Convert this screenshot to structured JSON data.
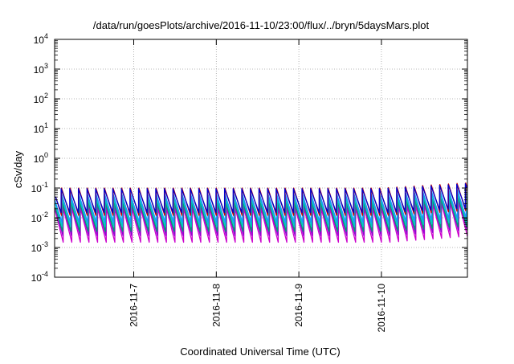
{
  "chart_data": {
    "type": "line",
    "title": "/data/run/goesPlots/archive/2016-11-10/23:00/flux/../bryn/5daysMars.plot",
    "xlabel": "Coordinated Universal Time (UTC)",
    "ylabel": "cSv/day",
    "y_scale": "log",
    "ylim": [
      0.0001,
      10000
    ],
    "y_ticks": [
      {
        "base": "10",
        "exp": "4",
        "value": 10000
      },
      {
        "base": "10",
        "exp": "3",
        "value": 1000
      },
      {
        "base": "10",
        "exp": "2",
        "value": 100
      },
      {
        "base": "10",
        "exp": "1",
        "value": 10
      },
      {
        "base": "10",
        "exp": "0",
        "value": 1
      },
      {
        "base": "10",
        "exp": "-1",
        "value": 0.1
      },
      {
        "base": "10",
        "exp": "-2",
        "value": 0.01
      },
      {
        "base": "10",
        "exp": "-3",
        "value": 0.001
      },
      {
        "base": "10",
        "exp": "-4",
        "value": 0.0001
      }
    ],
    "xlim": [
      "2016-11-06T01:00",
      "2016-11-11T01:00"
    ],
    "x_ticks": [
      {
        "label": "2016-11-7",
        "date": "2016-11-07T00:00"
      },
      {
        "label": "2016-11-8",
        "date": "2016-11-08T00:00"
      },
      {
        "label": "2016-11-9",
        "date": "2016-11-09T00:00"
      },
      {
        "label": "2016-11-10",
        "date": "2016-11-10T00:00"
      }
    ],
    "grid": "dotted, at major ticks",
    "legend": "none",
    "sawtooth_period_hours": 2.5,
    "series": [
      {
        "color": "#cc00cc",
        "peak": 0.021,
        "trough": 0.0015,
        "late_peak": 0.035
      },
      {
        "color": "#9400d3",
        "peak": 0.028,
        "trough": 0.0025,
        "late_peak": 0.045
      },
      {
        "color": "#009e73",
        "peak": 0.032,
        "trough": 0.0035,
        "late_peak": 0.05
      },
      {
        "color": "#00c8c8",
        "peak": 0.045,
        "trough": 0.005,
        "late_peak": 0.07
      },
      {
        "color": "#1e90ff",
        "peak": 0.06,
        "trough": 0.007,
        "late_peak": 0.09
      },
      {
        "color": "#c00000",
        "peak": 0.1,
        "trough": 0.012,
        "late_peak": 0.15
      },
      {
        "color": "#0000cc",
        "peak": 0.095,
        "trough": 0.015,
        "late_peak": 0.14
      }
    ]
  }
}
